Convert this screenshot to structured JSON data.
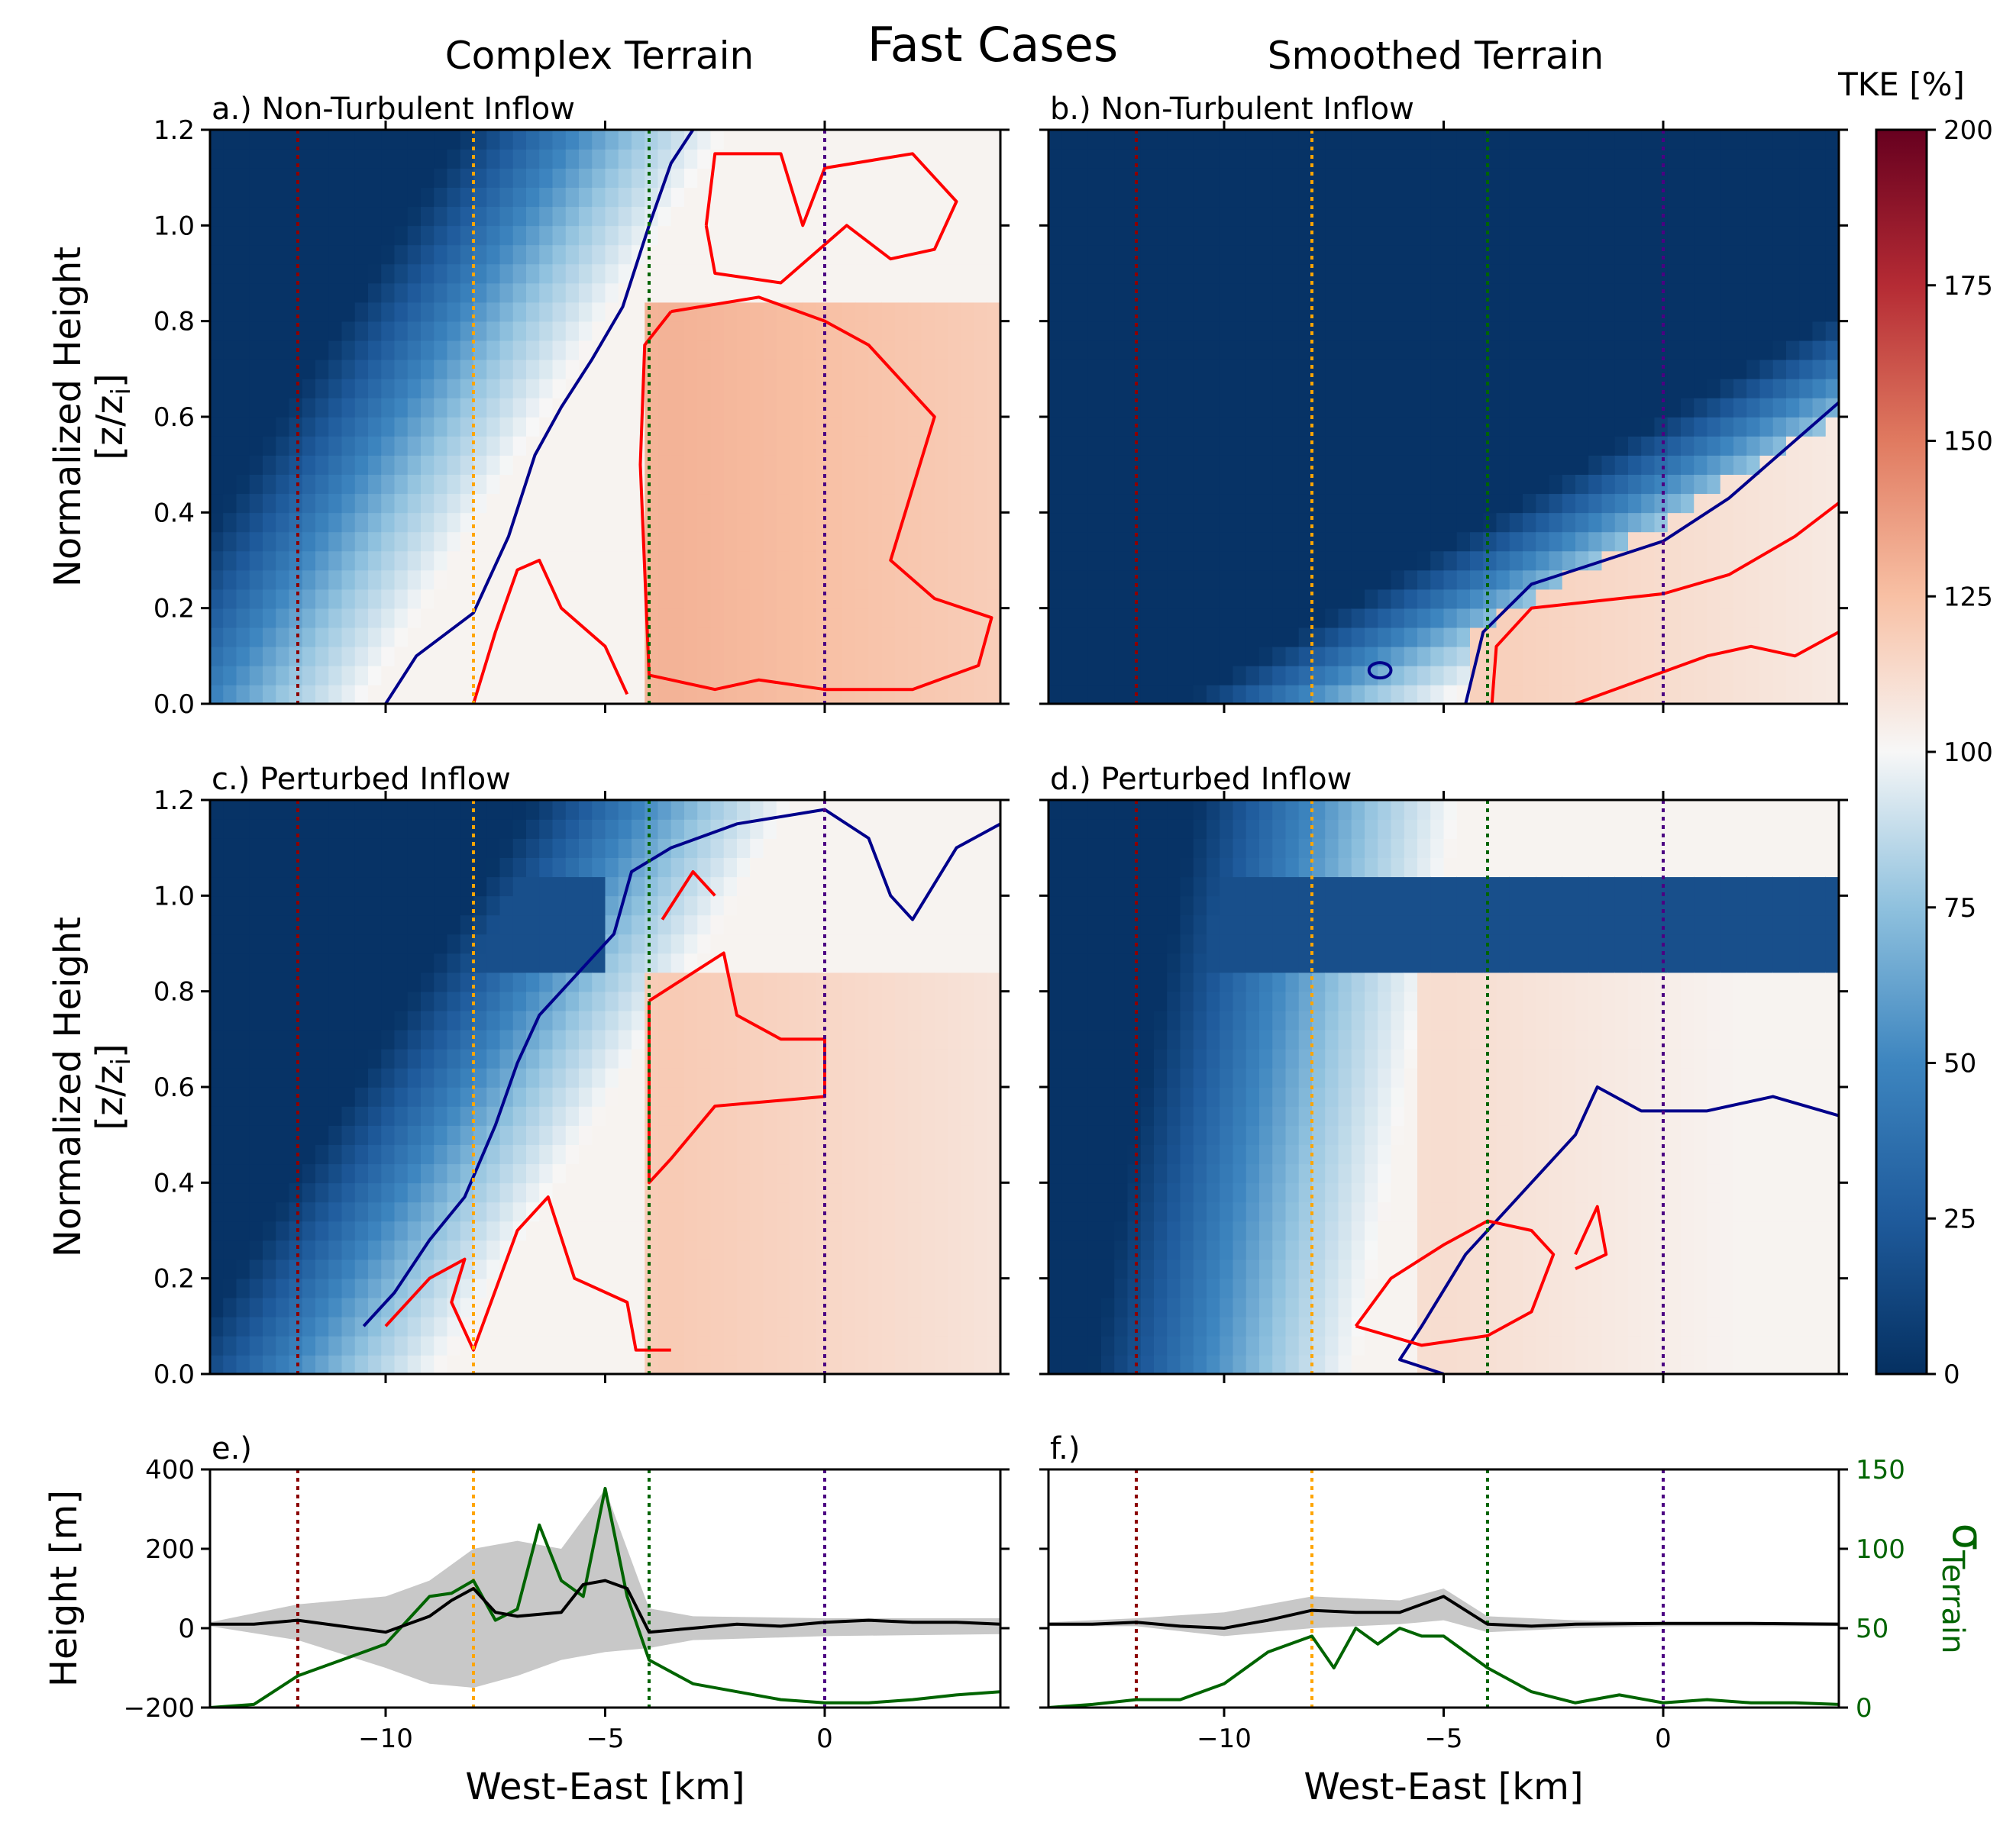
{
  "figure": {
    "title": "Fast Cases",
    "left_column_title": "Complex Terrain",
    "right_column_title": "Smoothed Terrain"
  },
  "colors": {
    "deep_blue": "#053061",
    "mid_blue": "#2166ac",
    "light_blue": "#92c5de",
    "white": "#f7f7f7",
    "peach": "#f4a582",
    "mid_red": "#d6604d",
    "dark_red": "#67001f",
    "contour_low": "#00008b",
    "contour_high": "#ff0000",
    "sigma_line": "#006400",
    "mean_line": "#000000",
    "envelope": "#c8c8c8",
    "marker_colors": [
      "#8b0000",
      "#ffa500",
      "#006400",
      "#4b0082"
    ]
  },
  "chart_data": [
    {
      "id": "a",
      "type": "heatmap",
      "title": "a.) Non-Turbulent Inflow",
      "ylabel": "Normalized Height\n[z/z_i]",
      "xlim": [
        -14,
        4
      ],
      "ylim": [
        0,
        1.2
      ],
      "yticks": [
        "0.0",
        "0.2",
        "0.4",
        "0.6",
        "0.8",
        "1.0",
        "1.2"
      ],
      "xticks": [
        -10,
        -5,
        0
      ],
      "markers_x": [
        -12,
        -8,
        -4,
        0
      ],
      "contour_levels": [
        75,
        125
      ],
      "contour_75": [
        [
          -10,
          0
        ],
        [
          -9.3,
          0.1
        ],
        [
          -8,
          0.19
        ],
        [
          -7.2,
          0.35
        ],
        [
          -6.6,
          0.52
        ],
        [
          -6,
          0.62
        ],
        [
          -5.3,
          0.72
        ],
        [
          -4.6,
          0.83
        ],
        [
          -4,
          1.0
        ],
        [
          -3.5,
          1.13
        ],
        [
          -3,
          1.2
        ]
      ],
      "contour_125_main": [
        [
          -3.5,
          0.82
        ],
        [
          -1.5,
          0.85
        ],
        [
          0,
          0.8
        ],
        [
          1,
          0.75
        ],
        [
          2.5,
          0.6
        ],
        [
          2,
          0.45
        ],
        [
          1.5,
          0.3
        ],
        [
          2.5,
          0.22
        ],
        [
          3.8,
          0.18
        ],
        [
          3.5,
          0.08
        ],
        [
          2,
          0.03
        ],
        [
          0,
          0.03
        ],
        [
          -1.5,
          0.05
        ],
        [
          -2.5,
          0.03
        ],
        [
          -4,
          0.06
        ],
        [
          -4.2,
          0.5
        ],
        [
          -4.1,
          0.75
        ],
        [
          -3.5,
          0.82
        ]
      ],
      "contour_125_top": [
        [
          -2.7,
          1.0
        ],
        [
          -2.5,
          1.15
        ],
        [
          -1,
          1.15
        ],
        [
          -0.5,
          1.0
        ],
        [
          0,
          1.12
        ],
        [
          2,
          1.15
        ],
        [
          3,
          1.05
        ],
        [
          2.5,
          0.95
        ],
        [
          1.5,
          0.93
        ],
        [
          0.5,
          1.0
        ],
        [
          -1,
          0.88
        ],
        [
          -2.5,
          0.9
        ],
        [
          -2.7,
          1.0
        ]
      ],
      "contour_125_low": [
        [
          -8,
          0
        ],
        [
          -7.5,
          0.15
        ],
        [
          -7,
          0.28
        ],
        [
          -6.5,
          0.3
        ],
        [
          -6,
          0.2
        ],
        [
          -5,
          0.12
        ],
        [
          -4.5,
          0.02
        ]
      ],
      "field": {
        "cold_front": [
          [
            0,
            -12.5
          ],
          [
            1.2,
            -4.2
          ]
        ],
        "hot_x": -3.5,
        "hot_value": 130
      }
    },
    {
      "id": "b",
      "type": "heatmap",
      "title": "b.) Non-Turbulent Inflow",
      "xlim": [
        -14,
        4
      ],
      "ylim": [
        0,
        1.2
      ],
      "yticks": [],
      "xticks": [
        -10,
        -5,
        0
      ],
      "markers_x": [
        -12,
        -8,
        -4,
        0
      ],
      "contour_levels": [
        75,
        125
      ],
      "contour_75": [
        [
          -4.5,
          0
        ],
        [
          -4.1,
          0.15
        ],
        [
          -3,
          0.25
        ],
        [
          -1,
          0.31
        ],
        [
          0,
          0.34
        ],
        [
          1.5,
          0.43
        ],
        [
          3,
          0.55
        ],
        [
          4,
          0.63
        ]
      ],
      "contour_75_island": [
        [
          -6.7,
          0.07
        ],
        [
          -6.2,
          0.07
        ]
      ],
      "contour_125_main": [
        [
          -3.9,
          0
        ],
        [
          -3.8,
          0.12
        ],
        [
          -3,
          0.2
        ],
        [
          -1,
          0.22
        ],
        [
          0,
          0.23
        ],
        [
          1.5,
          0.27
        ],
        [
          3,
          0.35
        ],
        [
          4,
          0.42
        ]
      ],
      "contour_125_low": [
        [
          -2,
          0
        ],
        [
          -0.5,
          0.05
        ],
        [
          1,
          0.1
        ],
        [
          2,
          0.12
        ],
        [
          3,
          0.1
        ],
        [
          4,
          0.15
        ]
      ],
      "field": {
        "cold_front": [
          [
            0,
            -7
          ],
          [
            0.6,
            4
          ]
        ],
        "hot_x": -3.8,
        "hot_value": 118
      }
    },
    {
      "id": "c",
      "type": "heatmap",
      "title": "c.) Perturbed Inflow",
      "ylabel": "Normalized Height\n[z/z_i]",
      "xlim": [
        -14,
        4
      ],
      "ylim": [
        0,
        1.2
      ],
      "yticks": [
        "0.0",
        "0.2",
        "0.4",
        "0.6",
        "0.8",
        "1.0",
        "1.2"
      ],
      "xticks": [
        -10,
        -5,
        0
      ],
      "markers_x": [
        -12,
        -8,
        -4,
        0
      ],
      "contour_levels": [
        75,
        125
      ],
      "contour_75": [
        [
          -10.5,
          0.1
        ],
        [
          -9.8,
          0.17
        ],
        [
          -9,
          0.28
        ],
        [
          -8.2,
          0.37
        ],
        [
          -7.5,
          0.52
        ],
        [
          -7,
          0.65
        ],
        [
          -6.5,
          0.75
        ],
        [
          -5.5,
          0.85
        ],
        [
          -4.8,
          0.92
        ],
        [
          -4.4,
          1.05
        ],
        [
          -3.5,
          1.1
        ],
        [
          -2,
          1.15
        ],
        [
          0,
          1.18
        ],
        [
          1,
          1.12
        ],
        [
          1.5,
          1.0
        ],
        [
          2,
          0.95
        ],
        [
          3,
          1.1
        ],
        [
          4,
          1.15
        ]
      ],
      "contour_125_main": [
        [
          -4,
          0.78
        ],
        [
          -2.3,
          0.88
        ],
        [
          -2,
          0.75
        ],
        [
          -1,
          0.7
        ],
        [
          0,
          0.7
        ],
        [
          0,
          0.58
        ],
        [
          -2.5,
          0.56
        ],
        [
          -3.5,
          0.45
        ],
        [
          -4,
          0.4
        ],
        [
          -4,
          0.78
        ]
      ],
      "contour_125_top": [
        [
          -3.7,
          0.95
        ],
        [
          -3,
          1.05
        ],
        [
          -2.5,
          1.0
        ]
      ],
      "contour_125_low": [
        [
          -10,
          0.1
        ],
        [
          -9,
          0.2
        ],
        [
          -8.2,
          0.24
        ],
        [
          -8.5,
          0.15
        ],
        [
          -8,
          0.05
        ],
        [
          -7,
          0.3
        ],
        [
          -6.3,
          0.37
        ],
        [
          -5.7,
          0.2
        ],
        [
          -4.5,
          0.15
        ],
        [
          -4.3,
          0.05
        ],
        [
          -3.5,
          0.05
        ]
      ],
      "field": {
        "cold_front": [
          [
            0,
            -10.8
          ],
          [
            0.85,
            -5
          ]
        ],
        "hot_x": -3.5,
        "hot_value": 120
      }
    },
    {
      "id": "d",
      "type": "heatmap",
      "title": "d.) Perturbed Inflow",
      "xlim": [
        -14,
        4
      ],
      "ylim": [
        0,
        1.2
      ],
      "yticks": [],
      "xticks": [
        -10,
        -5,
        0
      ],
      "markers_x": [
        -12,
        -8,
        -4,
        0
      ],
      "contour_levels": [
        75,
        125
      ],
      "contour_75": [
        [
          -5,
          0
        ],
        [
          -6,
          0.03
        ],
        [
          -5.5,
          0.1
        ],
        [
          -4.5,
          0.25
        ],
        [
          -3.5,
          0.35
        ],
        [
          -3,
          0.4
        ],
        [
          -2,
          0.5
        ],
        [
          -1.5,
          0.6
        ],
        [
          -0.5,
          0.55
        ],
        [
          1,
          0.55
        ],
        [
          2.5,
          0.58
        ],
        [
          4,
          0.54
        ]
      ],
      "contour_125_main": [
        [
          -7,
          0.1
        ],
        [
          -6.2,
          0.2
        ],
        [
          -5,
          0.27
        ],
        [
          -4,
          0.32
        ],
        [
          -3,
          0.3
        ],
        [
          -2.5,
          0.25
        ],
        [
          -3,
          0.13
        ],
        [
          -4,
          0.08
        ],
        [
          -5.5,
          0.06
        ],
        [
          -7,
          0.1
        ]
      ],
      "contour_125_top": [
        [
          -2,
          0.25
        ],
        [
          -1.5,
          0.35
        ],
        [
          -1.3,
          0.25
        ],
        [
          -2,
          0.22
        ]
      ],
      "field": {
        "cold_front": [
          [
            0,
            -9
          ],
          [
            1.0,
            -7
          ]
        ],
        "hot_x": -5,
        "hot_value": 112
      }
    },
    {
      "id": "e",
      "type": "line",
      "title": "e.)",
      "ylabel": "Height [m]",
      "xlabel": "West-East [km]",
      "xlim": [
        -14,
        4
      ],
      "ylim": [
        -200,
        400
      ],
      "yticks": [
        "−200",
        "0",
        "200",
        "400"
      ],
      "xticks": [
        "−10",
        "−5",
        "0"
      ],
      "y2lim": [
        0,
        150
      ],
      "y2ticks": [
        "0",
        "50",
        "100",
        "150"
      ],
      "markers_x": [
        -12,
        -8,
        -4,
        0
      ],
      "series": [
        {
          "name": "mean_height",
          "x": [
            -14,
            -13,
            -12,
            -11,
            -10,
            -9,
            -8.5,
            -8,
            -7.5,
            -7,
            -6,
            -5.5,
            -5,
            -4.5,
            -4,
            -3,
            -2,
            -1,
            0,
            1,
            2,
            3,
            4
          ],
          "values": [
            10,
            10,
            20,
            5,
            -10,
            30,
            70,
            100,
            40,
            30,
            40,
            110,
            120,
            100,
            -10,
            0,
            10,
            5,
            15,
            20,
            15,
            15,
            10
          ]
        },
        {
          "name": "upper",
          "x": [
            -14,
            -12,
            -10,
            -9,
            -8,
            -7,
            -6,
            -5,
            -4,
            -3,
            0,
            4
          ],
          "values": [
            15,
            60,
            80,
            120,
            200,
            220,
            200,
            350,
            50,
            30,
            25,
            25
          ]
        },
        {
          "name": "lower",
          "x": [
            -14,
            -12,
            -10,
            -9,
            -8,
            -7,
            -6,
            -5,
            -4,
            -3,
            0,
            4
          ],
          "values": [
            5,
            -30,
            -100,
            -140,
            -150,
            -120,
            -80,
            -60,
            -50,
            -30,
            -20,
            -15
          ]
        },
        {
          "name": "sigma_terrain",
          "x": [
            -14,
            -13,
            -12,
            -11,
            -10,
            -9.5,
            -9,
            -8.5,
            -8,
            -7.5,
            -7,
            -6.5,
            -6,
            -5.5,
            -5,
            -4.5,
            -4,
            -3,
            -2,
            -1,
            0,
            1,
            2,
            3,
            4
          ],
          "values": [
            0,
            2,
            20,
            30,
            40,
            55,
            70,
            72,
            80,
            55,
            62,
            115,
            80,
            70,
            138,
            70,
            30,
            15,
            10,
            5,
            3,
            3,
            5,
            8,
            10
          ]
        }
      ]
    },
    {
      "id": "f",
      "type": "line",
      "title": "f.)",
      "ylabel": "σTerrain",
      "xlabel": "West-East [km]",
      "xlim": [
        -14,
        4
      ],
      "ylim": [
        -200,
        400
      ],
      "xticks": [
        "−10",
        "−5",
        "0"
      ],
      "y2lim": [
        0,
        150
      ],
      "y2ticks": [
        "0",
        "50",
        "100",
        "150"
      ],
      "markers_x": [
        -12,
        -8,
        -4,
        0
      ],
      "series": [
        {
          "name": "mean_height",
          "x": [
            -14,
            -13,
            -12,
            -11,
            -10,
            -9,
            -8,
            -7,
            -6,
            -5,
            -4,
            -3,
            -2,
            0,
            2,
            4
          ],
          "values": [
            10,
            10,
            15,
            5,
            0,
            20,
            45,
            40,
            40,
            80,
            10,
            5,
            10,
            12,
            12,
            10
          ]
        },
        {
          "name": "upper",
          "x": [
            -14,
            -12,
            -10,
            -8,
            -6,
            -5,
            -4,
            -2,
            0,
            4
          ],
          "values": [
            15,
            25,
            40,
            80,
            70,
            100,
            30,
            20,
            15,
            15
          ]
        },
        {
          "name": "lower",
          "x": [
            -14,
            -12,
            -10,
            -8,
            -6,
            -5,
            -4,
            -2,
            0,
            4
          ],
          "values": [
            5,
            5,
            -20,
            0,
            10,
            20,
            -10,
            0,
            5,
            5
          ]
        },
        {
          "name": "sigma_terrain",
          "x": [
            -14,
            -13,
            -12,
            -11,
            -10,
            -9,
            -8,
            -7.5,
            -7,
            -6.5,
            -6,
            -5.5,
            -5,
            -4.5,
            -4,
            -3,
            -2,
            -1,
            0,
            1,
            2,
            3,
            4
          ],
          "values": [
            0,
            2,
            5,
            5,
            15,
            35,
            45,
            25,
            50,
            40,
            50,
            45,
            45,
            35,
            25,
            10,
            3,
            8,
            3,
            5,
            3,
            3,
            2
          ]
        }
      ]
    },
    {
      "id": "colorbar",
      "type": "colorbar",
      "title": "TKE [%]",
      "range": [
        0,
        200
      ],
      "ticks": [
        "0",
        "25",
        "50",
        "75",
        "100",
        "125",
        "150",
        "175",
        "200"
      ]
    }
  ]
}
